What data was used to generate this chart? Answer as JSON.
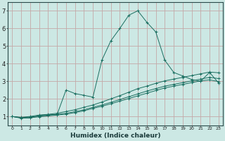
{
  "xlabel": "Humidex (Indice chaleur)",
  "bg_color": "#cce8e4",
  "grid_color": "#c4a8a8",
  "line_color": "#1a6e60",
  "xlim": [
    -0.5,
    23.5
  ],
  "ylim": [
    0.5,
    7.5
  ],
  "xticks": [
    0,
    1,
    2,
    3,
    4,
    5,
    6,
    7,
    8,
    9,
    10,
    11,
    12,
    13,
    14,
    15,
    16,
    17,
    18,
    19,
    20,
    21,
    22,
    23
  ],
  "yticks": [
    1,
    2,
    3,
    4,
    5,
    6,
    7
  ],
  "series": [
    {
      "x": [
        0,
        1,
        2,
        3,
        4,
        5,
        6,
        7,
        8,
        9,
        10,
        11,
        12,
        13,
        14,
        15,
        16,
        17,
        18,
        19,
        20,
        21,
        22,
        23
      ],
      "y": [
        1.0,
        0.92,
        0.91,
        1.05,
        1.1,
        1.1,
        2.5,
        2.3,
        2.2,
        2.1,
        4.2,
        5.3,
        6.0,
        6.75,
        7.0,
        6.35,
        5.8,
        4.2,
        3.5,
        3.3,
        3.1,
        3.0,
        3.5,
        2.9
      ]
    },
    {
      "x": [
        0,
        1,
        2,
        3,
        4,
        5,
        6,
        7,
        8,
        9,
        10,
        11,
        12,
        13,
        14,
        15,
        16,
        17,
        18,
        19,
        20,
        21,
        22,
        23
      ],
      "y": [
        1.0,
        0.95,
        1.0,
        1.08,
        1.12,
        1.18,
        1.28,
        1.38,
        1.52,
        1.65,
        1.82,
        2.0,
        2.18,
        2.38,
        2.58,
        2.72,
        2.88,
        3.02,
        3.12,
        3.22,
        3.32,
        3.42,
        3.52,
        3.48
      ]
    },
    {
      "x": [
        0,
        1,
        2,
        3,
        4,
        5,
        6,
        7,
        8,
        9,
        10,
        11,
        12,
        13,
        14,
        15,
        16,
        17,
        18,
        19,
        20,
        21,
        22,
        23
      ],
      "y": [
        1.0,
        0.93,
        0.97,
        1.02,
        1.07,
        1.12,
        1.18,
        1.27,
        1.38,
        1.52,
        1.65,
        1.8,
        1.96,
        2.12,
        2.28,
        2.44,
        2.58,
        2.72,
        2.82,
        2.92,
        3.02,
        3.12,
        3.22,
        3.15
      ]
    },
    {
      "x": [
        0,
        1,
        2,
        3,
        4,
        5,
        6,
        7,
        8,
        9,
        10,
        11,
        12,
        13,
        14,
        15,
        16,
        17,
        18,
        19,
        20,
        21,
        22,
        23
      ],
      "y": [
        1.0,
        0.9,
        0.93,
        0.98,
        1.03,
        1.08,
        1.13,
        1.22,
        1.32,
        1.46,
        1.58,
        1.72,
        1.87,
        2.02,
        2.17,
        2.32,
        2.47,
        2.62,
        2.72,
        2.82,
        2.92,
        3.02,
        3.08,
        2.98
      ]
    }
  ]
}
